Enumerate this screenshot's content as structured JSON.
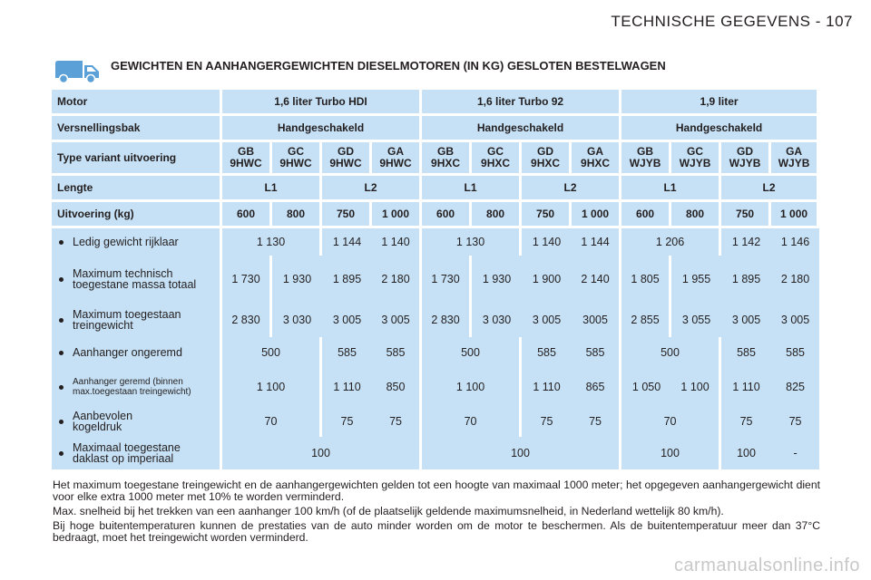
{
  "page": {
    "title": "TECHNISCHE GEGEVENS - 107"
  },
  "section": {
    "title": "GEWICHTEN EN AANHANGERGEWICHTEN DIESELMOTOREN (IN KG) GESLOTEN BESTELWAGEN",
    "icon": "van-icon"
  },
  "table": {
    "motor_label": "Motor",
    "motors": [
      "1,6 liter Turbo HDI",
      "1,6 liter Turbo 92",
      "1,9 liter"
    ],
    "gearbox_label": "Versnellingsbak",
    "gearboxes": [
      "Handgeschakeld",
      "Handgeschakeld",
      "Handgeschakeld"
    ],
    "type_label": "Type variant uitvoering",
    "types": [
      [
        "GB",
        "9HWC"
      ],
      [
        "GC",
        "9HWC"
      ],
      [
        "GD",
        "9HWC"
      ],
      [
        "GA",
        "9HWC"
      ],
      [
        "GB",
        "9HXC"
      ],
      [
        "GC",
        "9HXC"
      ],
      [
        "GD",
        "9HXC"
      ],
      [
        "GA",
        "9HXC"
      ],
      [
        "GB",
        "WJYB"
      ],
      [
        "GC",
        "WJYB"
      ],
      [
        "GD",
        "WJYB"
      ],
      [
        "GA",
        "WJYB"
      ]
    ],
    "length_label": "Lengte",
    "lengths": [
      "L1",
      "L2",
      "L1",
      "L2",
      "L1",
      "L2"
    ],
    "version_label": "Uitvoering (kg)",
    "versions": [
      "600",
      "800",
      "750",
      "1 000",
      "600",
      "800",
      "750",
      "1 000",
      "600",
      "800",
      "750",
      "1 000"
    ],
    "rows": {
      "empty": {
        "label": "Ledig gewicht rijklaar",
        "values": [
          "1 130",
          "1 144",
          "1 140",
          "1 130",
          "1 140",
          "1 144",
          "1 206",
          "1 142",
          "1 146"
        ]
      },
      "max_mass": {
        "label": "Maximum technisch toegestane massa totaal",
        "values": [
          "1 730",
          "1 930",
          "1 895",
          "2 180",
          "1 730",
          "1 930",
          "1 900",
          "2 140",
          "1 805",
          "1 955",
          "1 895",
          "2 180"
        ]
      },
      "max_train": {
        "label": "Maximum toegestaan treingewicht",
        "values": [
          "2 830",
          "3 030",
          "3 005",
          "3 005",
          "2 830",
          "3 030",
          "3 005",
          "3005",
          "2 855",
          "3 055",
          "3 005",
          "3 005"
        ]
      },
      "unbraked": {
        "label": "Aanhanger ongeremd",
        "values": [
          "500",
          "585",
          "585",
          "500",
          "585",
          "585",
          "500",
          "585",
          "585"
        ]
      },
      "braked": {
        "label": "Aanhanger geremd (binnen max.toegestaan treingewicht)",
        "values": [
          "1 100",
          "1 110",
          "850",
          "1 100",
          "1 110",
          "865",
          "1 050",
          "1 100",
          "1 110",
          "825"
        ]
      },
      "ball": {
        "label": "Aanbevolen kogeldruk",
        "values": [
          "70",
          "75",
          "75",
          "70",
          "75",
          "75",
          "70",
          "75",
          "75"
        ]
      },
      "roof": {
        "label": "Maximaal toegestane daklast op imperiaal",
        "values": [
          "100",
          "100",
          "100",
          "100",
          "-"
        ]
      }
    }
  },
  "notes": [
    "Het maximum toegestane treingewicht en de aanhangergewichten gelden tot een hoogte van maximaal 1000 meter; het opgegeven aanhangergewicht dient voor elke extra 1000 meter met 10% te worden verminderd.",
    "Max. snelheid bij het trekken van een aanhanger 100 km/h (of de plaatselijk geldende maximumsnelheid, in Nederland wettelijk 80 km/h).",
    "Bij hoge buitentemperaturen kunnen de prestaties van de auto minder worden om de motor te beschermen. Als de buitentemperatuur meer dan 37°C bedraagt, moet het treingewicht worden verminderd."
  ],
  "watermark": "carmanualsonline.info",
  "colors": {
    "table_fill": "#c6e1f5",
    "van_icon": "#5ba0d6",
    "text": "#231f20"
  }
}
